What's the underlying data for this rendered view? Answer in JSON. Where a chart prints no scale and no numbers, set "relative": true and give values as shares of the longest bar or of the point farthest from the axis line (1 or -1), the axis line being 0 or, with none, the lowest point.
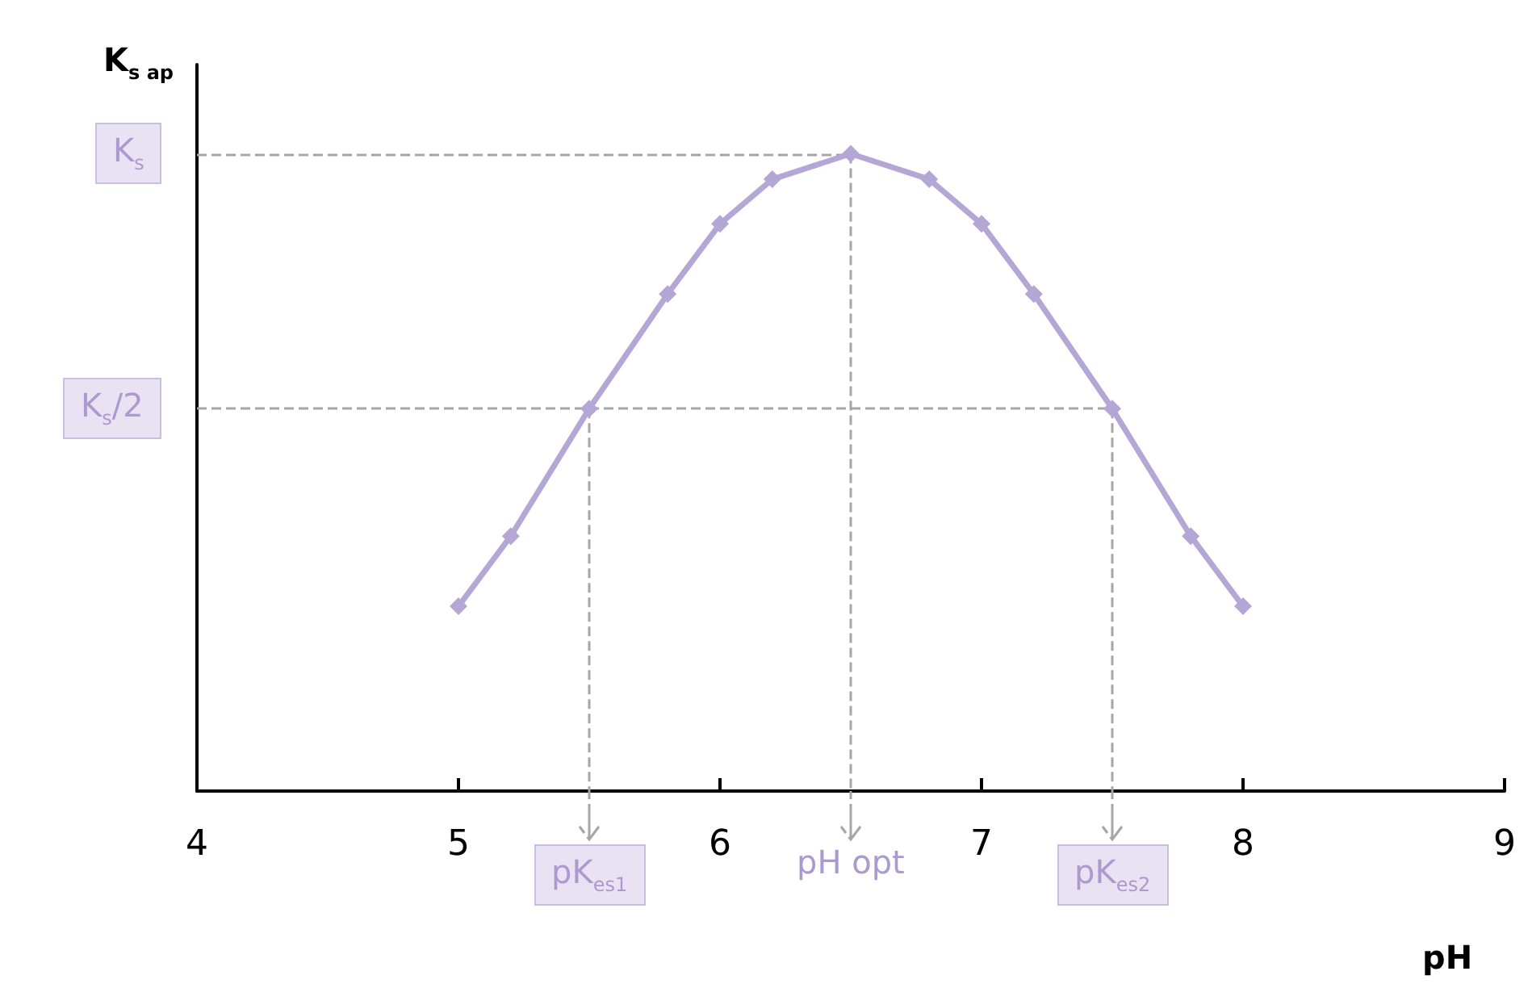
{
  "chart_data": {
    "type": "line",
    "relative": true,
    "xlabel": "pH",
    "ylabel": "K$_{s ap}$",
    "x": [
      5,
      5.2,
      5.5,
      5.8,
      6.0,
      6.2,
      6.5,
      6.8,
      7.0,
      7.2,
      7.5,
      7.8,
      8.0
    ],
    "series": [
      {
        "color": "#b4a7d6",
        "values": [
          0.29,
          0.4,
          0.6,
          0.78,
          0.89,
          0.96,
          1,
          0.96,
          0.89,
          0.78,
          0.6,
          0.4,
          0.29
        ]
      }
    ],
    "xlim": [
      4,
      9
    ],
    "xticks": [
      4,
      5,
      6,
      7,
      8,
      9
    ],
    "marker": "diamond",
    "line_style": "solid",
    "grid": false,
    "ref_lines": [
      {
        "axis": "y",
        "value": 1,
        "label": "K$_{s}$",
        "color": "#a6a6a6",
        "line_style": "dashed"
      },
      {
        "axis": "y",
        "value": 0.6,
        "label": "K$_{s}$/2",
        "color": "#a6a6a6",
        "line_style": "dashed"
      },
      {
        "axis": "x",
        "value": 5.5,
        "label": "pK$_{es1}$",
        "color": "#a6a6a6",
        "line_style": "dashed"
      },
      {
        "axis": "x",
        "value": 6.5,
        "label": "pH opt",
        "color": "#a6a6a6",
        "line_style": "dashed"
      },
      {
        "axis": "x",
        "value": 7.5,
        "label": "pK$_{es2}$",
        "color": "#a6a6a6",
        "line_style": "dashed"
      }
    ]
  }
}
